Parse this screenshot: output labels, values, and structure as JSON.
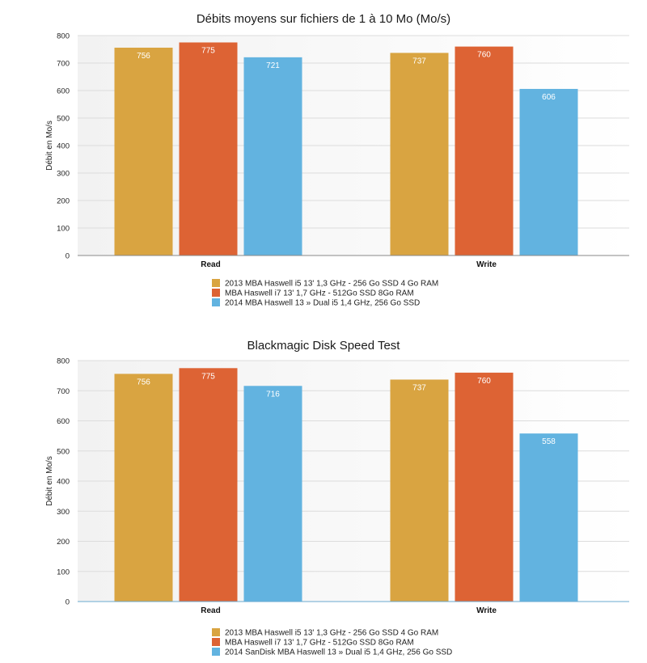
{
  "chart_data": [
    {
      "type": "bar",
      "title": "Débits moyens sur fichiers de 1 à 10 Mo (Mo/s)",
      "ylabel": "Débit en Mo/s",
      "xlabel": "",
      "categories": [
        "Read",
        "Write"
      ],
      "ylim": [
        0,
        800
      ],
      "yticks": [
        0,
        100,
        200,
        300,
        400,
        500,
        600,
        700,
        800
      ],
      "grid": true,
      "legend": "bottom",
      "series": [
        {
          "name": "2013 MBA Haswell i5 13' 1,3 GHz - 256 Go SSD 4 Go RAM",
          "color": "#D9A441",
          "values": [
            756,
            737
          ]
        },
        {
          "name": "MBA Haswell i7 13' 1,7 GHz - 512Go SSD 8Go RAM",
          "color": "#DD6334",
          "values": [
            775,
            760
          ]
        },
        {
          "name": "2014 MBA Haswell 13 » Dual i5 1,4 GHz, 256 Go SSD",
          "color": "#62B3E0",
          "values": [
            721,
            606
          ]
        }
      ]
    },
    {
      "type": "bar",
      "title": "Blackmagic Disk Speed Test",
      "ylabel": "Débit en Mo/s",
      "xlabel": "",
      "categories": [
        "Read",
        "Write"
      ],
      "ylim": [
        0,
        800
      ],
      "yticks": [
        0,
        100,
        200,
        300,
        400,
        500,
        600,
        700,
        800
      ],
      "grid": true,
      "legend": "bottom",
      "series": [
        {
          "name": "2013 MBA Haswell i5 13' 1,3 GHz - 256 Go SSD 4 Go RAM",
          "color": "#D9A441",
          "values": [
            756,
            737
          ]
        },
        {
          "name": "MBA Haswell i7 13' 1,7 GHz - 512Go SSD 8Go RAM",
          "color": "#DD6334",
          "values": [
            775,
            760
          ]
        },
        {
          "name": "2014 SanDisk MBA Haswell 13 » Dual i5 1,4 GHz, 256 Go SSD",
          "color": "#62B3E0",
          "values": [
            716,
            558
          ]
        }
      ]
    }
  ]
}
